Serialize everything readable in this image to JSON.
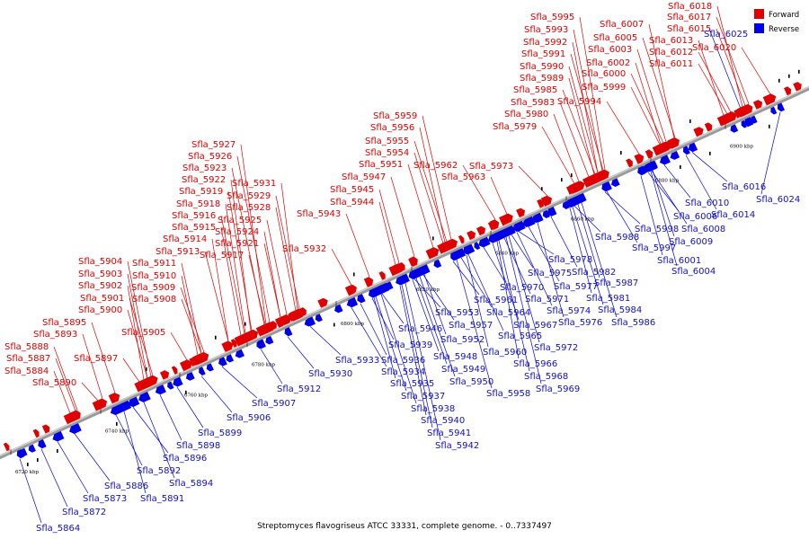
{
  "caption": "Streptomyces flavogriseus ATCC 33331, complete genome. - 0..7337497",
  "legend": {
    "forward_label": "Forward",
    "reverse_label": "Reverse",
    "forward_color": "#e00000",
    "reverse_color": "#0000e6"
  },
  "axis": {
    "unit": "kbp",
    "ticks": [
      "6720 kbp",
      "6740 kbp",
      "6760 kbp",
      "6780 kbp",
      "6800 kbp",
      "6820 kbp",
      "6840 kbp",
      "6860 kbp",
      "6880 kbp",
      "6900 kbp"
    ]
  },
  "forward_genes": [
    "Sfla_5884",
    "Sfla_5887",
    "Sfla_5888",
    "Sfla_5890",
    "Sfla_5893",
    "Sfla_5895",
    "Sfla_5897",
    "Sfla_5900",
    "Sfla_5901",
    "Sfla_5902",
    "Sfla_5903",
    "Sfla_5904",
    "Sfla_5905",
    "Sfla_5908",
    "Sfla_5909",
    "Sfla_5910",
    "Sfla_5911",
    "Sfla_5913",
    "Sfla_5914",
    "Sfla_5915",
    "Sfla_5916",
    "Sfla_5917",
    "Sfla_5918",
    "Sfla_5919",
    "Sfla_5921",
    "Sfla_5922",
    "Sfla_5923",
    "Sfla_5924",
    "Sfla_5925",
    "Sfla_5926",
    "Sfla_5927",
    "Sfla_5928",
    "Sfla_5929",
    "Sfla_5931",
    "Sfla_5932",
    "Sfla_5943",
    "Sfla_5944",
    "Sfla_5945",
    "Sfla_5947",
    "Sfla_5951",
    "Sfla_5954",
    "Sfla_5955",
    "Sfla_5956",
    "Sfla_5959",
    "Sfla_5962",
    "Sfla_5963",
    "Sfla_5973",
    "Sfla_5979",
    "Sfla_5980",
    "Sfla_5983",
    "Sfla_5985",
    "Sfla_5989",
    "Sfla_5990",
    "Sfla_5991",
    "Sfla_5992",
    "Sfla_5993",
    "Sfla_5994",
    "Sfla_5995",
    "Sfla_5999",
    "Sfla_6000",
    "Sfla_6002",
    "Sfla_6003",
    "Sfla_6005",
    "Sfla_6007",
    "Sfla_6011",
    "Sfla_6012",
    "Sfla_6013",
    "Sfla_6015",
    "Sfla_6017",
    "Sfla_6018",
    "Sfla_6020"
  ],
  "reverse_genes": [
    "Sfla_5864",
    "Sfla_5872",
    "Sfla_5873",
    "Sfla_5886",
    "Sfla_5891",
    "Sfla_5892",
    "Sfla_5894",
    "Sfla_5896",
    "Sfla_5898",
    "Sfla_5899",
    "Sfla_5906",
    "Sfla_5907",
    "Sfla_5912",
    "Sfla_5930",
    "Sfla_5933",
    "Sfla_5934",
    "Sfla_5935",
    "Sfla_5936",
    "Sfla_5937",
    "Sfla_5938",
    "Sfla_5939",
    "Sfla_5940",
    "Sfla_5941",
    "Sfla_5942",
    "Sfla_5946",
    "Sfla_5948",
    "Sfla_5949",
    "Sfla_5950",
    "Sfla_5952",
    "Sfla_5953",
    "Sfla_5957",
    "Sfla_5958",
    "Sfla_5960",
    "Sfla_5961",
    "Sfla_5964",
    "Sfla_5965",
    "Sfla_5966",
    "Sfla_5967",
    "Sfla_5968",
    "Sfla_5969",
    "Sfla_5970",
    "Sfla_5971",
    "Sfla_5972",
    "Sfla_5974",
    "Sfla_5975",
    "Sfla_5976",
    "Sfla_5977",
    "Sfla_5978",
    "Sfla_5981",
    "Sfla_5982",
    "Sfla_5984",
    "Sfla_5986",
    "Sfla_5987",
    "Sfla_5988",
    "Sfla_5997",
    "Sfla_5998",
    "Sfla_6001",
    "Sfla_6004",
    "Sfla_6006",
    "Sfla_6008",
    "Sfla_6009",
    "Sfla_6010",
    "Sfla_6014",
    "Sfla_6016",
    "Sfla_6024",
    "Sfla_6025"
  ]
}
